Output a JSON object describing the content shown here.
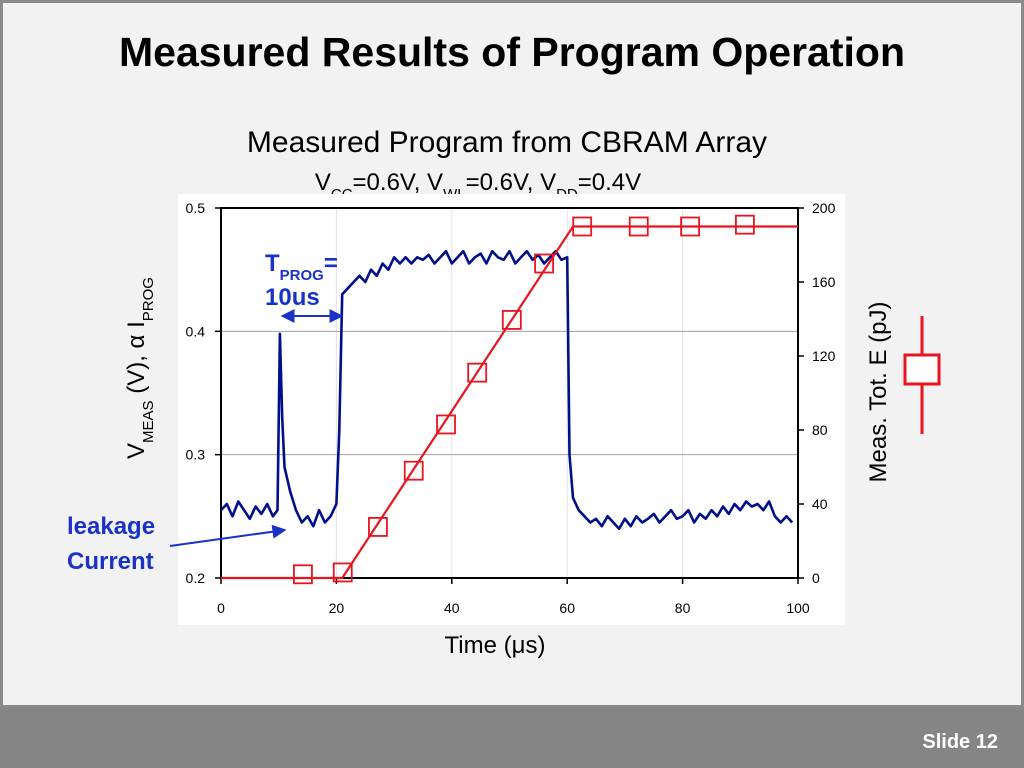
{
  "slide_title": "Measured Results of Program Operation",
  "slide_number": "Slide 12",
  "chart_data": {
    "type": "line",
    "title": "Measured Program from CBRAM Array",
    "subtitle": [
      "V",
      "CC",
      "=0.6V, V",
      "WL",
      "=0.6V, V",
      "DD",
      "=0.4V"
    ],
    "x_label": "Time (μs)",
    "y_label": [
      "V",
      "MEAS",
      " (V), α I",
      "PROG"
    ],
    "y2_label": "Meas. Tot. E (pJ)",
    "annotations": {
      "tprog": [
        "T",
        "PROG",
        "=",
        "10us"
      ],
      "leakage": [
        "leakage",
        "Current"
      ]
    },
    "xlim": [
      0,
      100
    ],
    "xticks": [
      0,
      20,
      40,
      60,
      80,
      100
    ],
    "ylim": [
      0.2,
      0.5
    ],
    "yticks": [
      0.2,
      0.3,
      0.4,
      0.5
    ],
    "y2lim": [
      0,
      200
    ],
    "y2ticks": [
      0,
      40,
      80,
      120,
      160,
      200
    ],
    "grid": true,
    "series": [
      {
        "color": "#000f8c",
        "axis": "y",
        "x": [
          0,
          1,
          2,
          3,
          4,
          5,
          6,
          7,
          8,
          9,
          9.8,
          10.2,
          10.6,
          11,
          12,
          13,
          14,
          15,
          16,
          17,
          18,
          19,
          20,
          20.5,
          21,
          22,
          23,
          24,
          25,
          26,
          27,
          28,
          29,
          30,
          31,
          32,
          33,
          34,
          35,
          36,
          37,
          38,
          39,
          40,
          41,
          42,
          43,
          44,
          45,
          46,
          47,
          48,
          49,
          50,
          51,
          52,
          53,
          54,
          55,
          56,
          57,
          58,
          59,
          60,
          60.4,
          61,
          62,
          63,
          64,
          65,
          66,
          67,
          68,
          69,
          70,
          71,
          72,
          73,
          74,
          75,
          76,
          77,
          78,
          79,
          80,
          81,
          82,
          83,
          84,
          85,
          86,
          87,
          88,
          89,
          90,
          91,
          92,
          93,
          94,
          95,
          96,
          97,
          98,
          99
        ],
        "values": [
          0.255,
          0.26,
          0.25,
          0.262,
          0.255,
          0.248,
          0.258,
          0.252,
          0.26,
          0.25,
          0.255,
          0.398,
          0.33,
          0.29,
          0.27,
          0.255,
          0.245,
          0.25,
          0.242,
          0.255,
          0.245,
          0.25,
          0.26,
          0.32,
          0.43,
          0.435,
          0.44,
          0.445,
          0.44,
          0.45,
          0.445,
          0.455,
          0.45,
          0.46,
          0.455,
          0.46,
          0.455,
          0.46,
          0.458,
          0.462,
          0.455,
          0.46,
          0.465,
          0.455,
          0.46,
          0.465,
          0.455,
          0.46,
          0.463,
          0.455,
          0.465,
          0.46,
          0.458,
          0.465,
          0.455,
          0.46,
          0.465,
          0.458,
          0.462,
          0.455,
          0.46,
          0.465,
          0.458,
          0.46,
          0.3,
          0.265,
          0.255,
          0.25,
          0.245,
          0.248,
          0.242,
          0.25,
          0.245,
          0.24,
          0.248,
          0.242,
          0.25,
          0.245,
          0.248,
          0.252,
          0.245,
          0.25,
          0.255,
          0.248,
          0.25,
          0.255,
          0.245,
          0.252,
          0.248,
          0.255,
          0.25,
          0.258,
          0.252,
          0.26,
          0.255,
          0.262,
          0.258,
          0.26,
          0.255,
          0.262,
          0.25,
          0.245,
          0.25,
          0.245
        ]
      },
      {
        "color": "#e8141e",
        "axis": "y2",
        "x": [
          0,
          10,
          21,
          61,
          100
        ],
        "values": [
          0,
          0,
          0,
          190,
          190
        ]
      },
      {
        "color": "#e8141e",
        "axis": "y2",
        "marker": "square",
        "x": [
          14.2,
          21.1,
          27.2,
          33.4,
          39,
          44.4,
          50.4,
          56,
          62.6,
          72.4,
          81.3,
          90.8
        ],
        "values": [
          2,
          3,
          27.6,
          58,
          83,
          111,
          139.5,
          170,
          190,
          190,
          190,
          191
        ]
      }
    ]
  }
}
